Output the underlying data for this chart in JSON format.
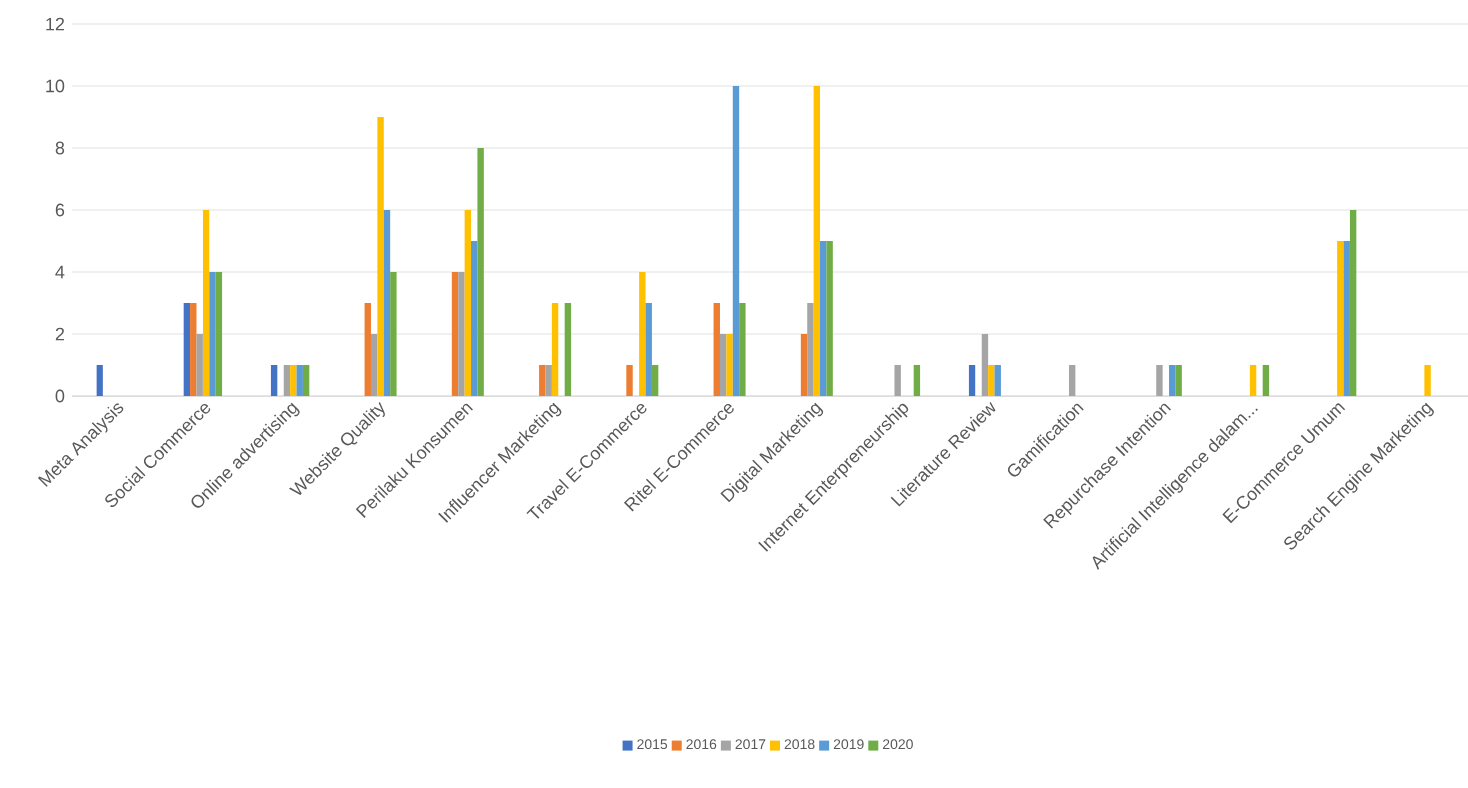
{
  "chart_data": {
    "type": "bar",
    "categories": [
      "Meta Analysis",
      "Social Commerce",
      "Online advertising",
      "Website Quality",
      "Perilaku Konsumen",
      "Influencer Marketing",
      "Travel E-Commerce",
      "Ritel E-Commerce",
      "Digital Marketing",
      "Internet Enterpreneurship",
      "Literature Review",
      "Gamification",
      "Repurchase Intention",
      "Artificial Intelligence dalam...",
      "E-Commerce Umum",
      "Search Engine Marketing"
    ],
    "series": [
      {
        "name": "2015",
        "color": "#4472c4",
        "values": [
          1,
          3,
          1,
          null,
          null,
          null,
          null,
          null,
          null,
          null,
          1,
          null,
          null,
          null,
          null,
          null
        ]
      },
      {
        "name": "2016",
        "color": "#ed7d31",
        "values": [
          null,
          3,
          null,
          3,
          4,
          1,
          1,
          3,
          2,
          null,
          null,
          null,
          null,
          null,
          null,
          null
        ]
      },
      {
        "name": "2017",
        "color": "#a5a5a5",
        "values": [
          null,
          2,
          1,
          2,
          4,
          1,
          null,
          2,
          3,
          1,
          2,
          1,
          1,
          null,
          null,
          null
        ]
      },
      {
        "name": "2018",
        "color": "#ffc000",
        "values": [
          null,
          6,
          1,
          9,
          6,
          3,
          4,
          2,
          10,
          null,
          1,
          null,
          null,
          1,
          5,
          1
        ]
      },
      {
        "name": "2019",
        "color": "#5b9bd5",
        "values": [
          null,
          4,
          1,
          6,
          5,
          null,
          3,
          10,
          5,
          null,
          1,
          null,
          1,
          null,
          5,
          null
        ]
      },
      {
        "name": "2020",
        "color": "#70ad47",
        "values": [
          null,
          4,
          1,
          4,
          8,
          3,
          1,
          3,
          5,
          1,
          null,
          null,
          1,
          1,
          6,
          null
        ]
      }
    ],
    "ylim": [
      0,
      12
    ],
    "yticks": [
      0,
      2,
      4,
      6,
      8,
      10,
      12
    ],
    "grid": "y",
    "legend": "bottom"
  }
}
